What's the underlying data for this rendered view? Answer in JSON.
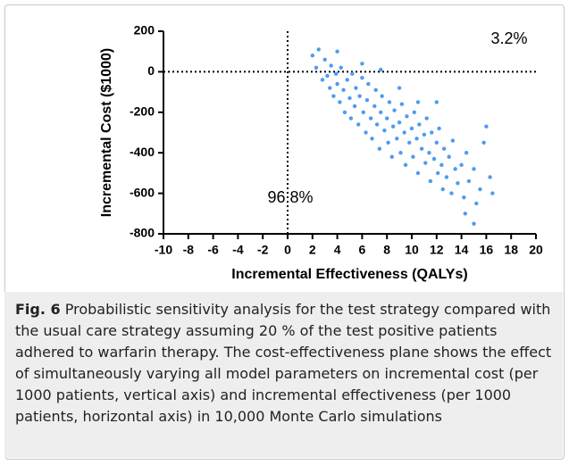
{
  "chart_data": {
    "type": "scatter",
    "xlabel": "Incremental Effectiveness (QALYs)",
    "ylabel": "Incremental Cost ($1000)",
    "color": "#4f9bef",
    "xlim": [
      -10,
      20
    ],
    "xticks": [
      -10,
      -8,
      -6,
      -4,
      -2,
      0,
      2,
      4,
      6,
      8,
      10,
      12,
      14,
      16,
      18,
      20
    ],
    "ylim": [
      -800,
      200
    ],
    "yticks": [
      200,
      0,
      -200,
      -400,
      -600,
      -800
    ],
    "reference_lines": [
      {
        "axis": "x",
        "value": 0
      },
      {
        "axis": "y",
        "value": 0
      }
    ],
    "annotations": [
      "3.2%",
      "96.8%"
    ],
    "x": [
      2.0,
      2.3,
      2.5,
      2.8,
      3.0,
      3.2,
      3.4,
      3.5,
      3.7,
      3.9,
      4.0,
      4.2,
      4.3,
      4.5,
      4.6,
      4.8,
      5.0,
      5.1,
      5.2,
      5.4,
      5.5,
      5.7,
      5.8,
      6.0,
      6.1,
      6.3,
      6.4,
      6.5,
      6.7,
      6.8,
      7.0,
      7.1,
      7.2,
      7.4,
      7.5,
      7.6,
      7.8,
      8.0,
      8.1,
      8.2,
      8.4,
      8.5,
      8.6,
      8.8,
      9.0,
      9.1,
      9.2,
      9.4,
      9.5,
      9.6,
      9.8,
      10.0,
      10.1,
      10.2,
      10.4,
      10.5,
      10.6,
      10.8,
      11.0,
      11.1,
      11.2,
      11.4,
      11.5,
      11.6,
      11.8,
      12.0,
      12.1,
      12.2,
      12.4,
      12.5,
      12.6,
      12.8,
      13.0,
      13.2,
      13.3,
      13.5,
      13.7,
      14.0,
      14.2,
      14.4,
      14.6,
      15.0,
      15.2,
      15.5,
      15.8,
      16.0,
      16.3,
      16.5,
      15.0,
      14.3,
      12.0,
      10.5,
      9.0,
      7.5,
      6.0,
      4.0
    ],
    "y": [
      80,
      20,
      110,
      -40,
      60,
      -20,
      -80,
      30,
      -120,
      -10,
      -60,
      -150,
      20,
      -90,
      -200,
      -40,
      -130,
      -230,
      -10,
      -170,
      -80,
      -260,
      -120,
      -30,
      -200,
      -300,
      -140,
      -60,
      -230,
      -330,
      -170,
      -90,
      -260,
      -380,
      -200,
      -120,
      -290,
      -230,
      -350,
      -150,
      -420,
      -270,
      -190,
      -330,
      -250,
      -400,
      -160,
      -300,
      -460,
      -220,
      -350,
      -280,
      -420,
      -200,
      -330,
      -500,
      -260,
      -380,
      -310,
      -450,
      -230,
      -400,
      -540,
      -300,
      -430,
      -350,
      -500,
      -280,
      -460,
      -580,
      -380,
      -520,
      -420,
      -600,
      -340,
      -480,
      -550,
      -460,
      -620,
      -400,
      -540,
      -480,
      -650,
      -580,
      -350,
      -270,
      -520,
      -600,
      -750,
      -700,
      -150,
      -150,
      -80,
      10,
      40,
      100
    ]
  },
  "caption": {
    "label": "Fig. 6",
    "text": "Probabilistic sensitivity analysis for the test strategy compared with the usual care strategy assuming 20 % of the test positive patients adhered to warfarin therapy. The cost-effectiveness plane shows the effect of simultaneously varying all model parameters on incremental cost (per 1000 patients, vertical axis) and incremental effectiveness (per 1000 patients, horizontal axis) in 10,000 Monte Carlo simulations"
  }
}
